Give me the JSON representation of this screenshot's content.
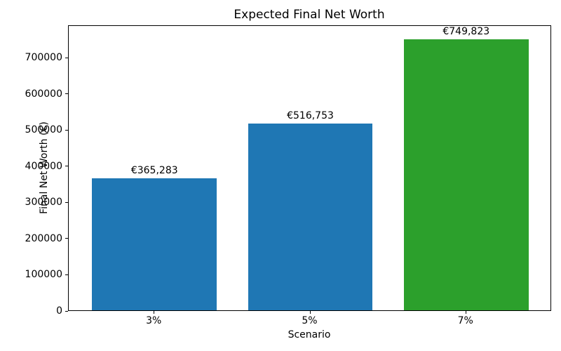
{
  "chart_data": {
    "type": "bar",
    "title": "Expected Final Net Worth",
    "xlabel": "Scenario",
    "ylabel": "Final Net Worth (€)",
    "categories": [
      "3%",
      "5%",
      "7%"
    ],
    "values": [
      365283,
      516753,
      749823
    ],
    "bar_labels": [
      "€365,283",
      "€516,753",
      "€749,823"
    ],
    "bar_colors": [
      "#1f77b4",
      "#1f77b4",
      "#2ca02c"
    ],
    "yticks": [
      0,
      100000,
      200000,
      300000,
      400000,
      500000,
      600000,
      700000
    ],
    "ytick_labels": [
      "0",
      "100000",
      "200000",
      "300000",
      "400000",
      "500000",
      "600000",
      "700000"
    ],
    "ylim": [
      0,
      790000
    ],
    "xlim": [
      -0.55,
      2.55
    ],
    "bar_width": 0.8,
    "grid": false,
    "legend": false,
    "spine_color": "#000000",
    "background": "#ffffff"
  }
}
